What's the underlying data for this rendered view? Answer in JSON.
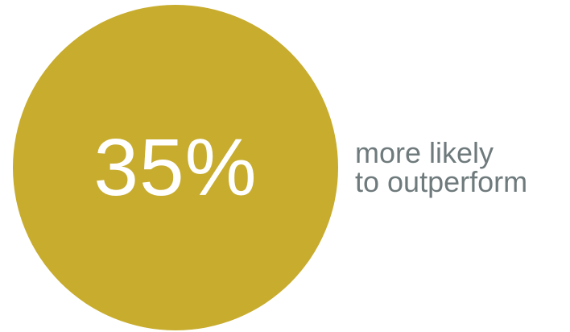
{
  "stat": {
    "value": "35%",
    "caption_line1": "more likely",
    "caption_line2": "to outperform"
  },
  "colors": {
    "circle": "#c8ac2e",
    "value_text": "#ffffff",
    "caption_text": "#6f7a7c"
  }
}
